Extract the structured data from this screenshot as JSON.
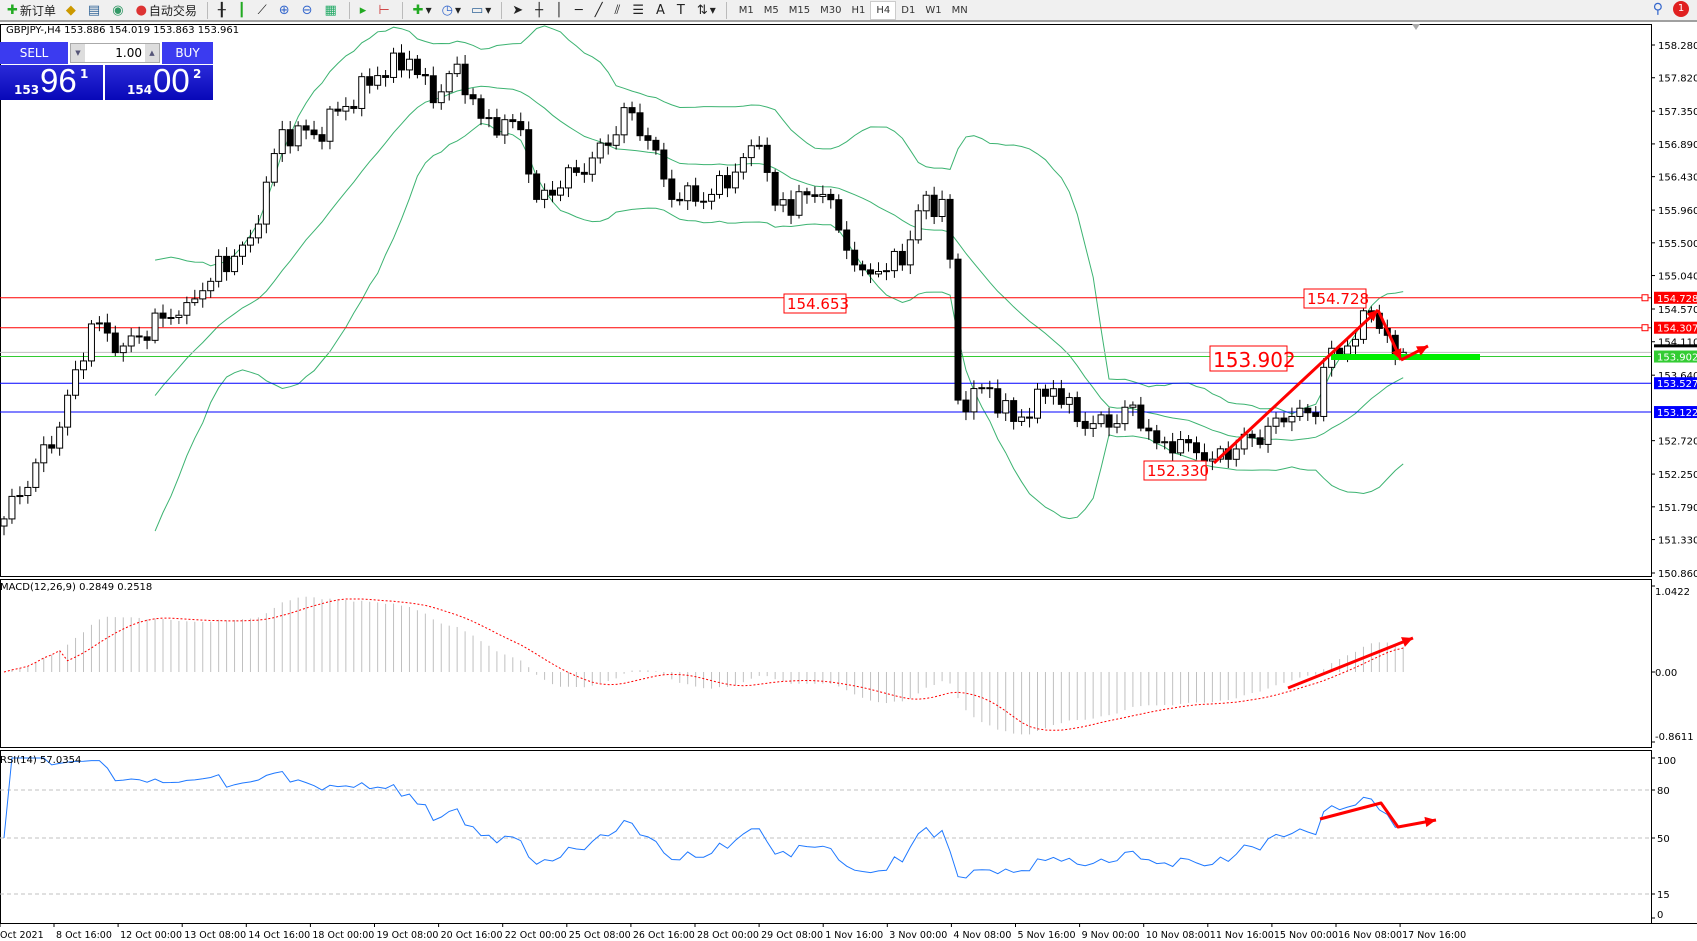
{
  "toolbar": {
    "new_order": "新订单",
    "auto_trading": "自动交易",
    "timeframes": [
      "M1",
      "M5",
      "M15",
      "M30",
      "H1",
      "H4",
      "D1",
      "W1",
      "MN"
    ],
    "selected_timeframe": "H4",
    "notifications": "1"
  },
  "chart": {
    "title": "GBPJPY-,H4  153.886 154.019 153.863 153.961",
    "symbol": "GBPJPY-",
    "period": "H4",
    "open": 153.886,
    "high": 154.019,
    "low": 153.863,
    "close": 153.961
  },
  "trade_panel": {
    "sell_label": "SELL",
    "buy_label": "BUY",
    "lot": "1.00",
    "bid": {
      "big": "153",
      "main": "96",
      "sup": "1"
    },
    "ask": {
      "big": "154",
      "main": "00",
      "sup": "2"
    }
  },
  "chart_data": {
    "type": "candlestick",
    "price_axis": {
      "ticks": [
        "158.280",
        "157.820",
        "157.350",
        "156.890",
        "156.430",
        "155.960",
        "155.500",
        "155.040",
        "154.570",
        "154.110",
        "153.640",
        "152.720",
        "152.250",
        "151.790",
        "151.330",
        "150.860"
      ],
      "range": [
        150.86,
        158.28
      ]
    },
    "time_axis": [
      "Oct 2021",
      "8 Oct 16:00",
      "12 Oct 00:00",
      "13 Oct 08:00",
      "14 Oct 16:00",
      "18 Oct 00:00",
      "19 Oct 08:00",
      "20 Oct 16:00",
      "22 Oct 00:00",
      "25 Oct 08:00",
      "26 Oct 16:00",
      "28 Oct 00:00",
      "29 Oct 08:00",
      "1 Nov 16:00",
      "3 Nov 00:00",
      "4 Nov 08:00",
      "5 Nov 16:00",
      "9 Nov 00:00",
      "10 Nov 08:00",
      "11 Nov 16:00",
      "15 Nov 00:00",
      "16 Nov 08:00",
      "17 Nov 16:00"
    ],
    "close_path_bar_price": [
      [
        0,
        151.62
      ],
      [
        7,
        152.91
      ],
      [
        11,
        154.36
      ],
      [
        15,
        154.05
      ],
      [
        23,
        154.66
      ],
      [
        31,
        155.57
      ],
      [
        35,
        157.09
      ],
      [
        39,
        157.02
      ],
      [
        47,
        157.85
      ],
      [
        51,
        158.08
      ],
      [
        54,
        157.47
      ],
      [
        57,
        158.01
      ],
      [
        60,
        157.25
      ],
      [
        65,
        157.09
      ],
      [
        67,
        156.11
      ],
      [
        72,
        156.49
      ],
      [
        76,
        156.87
      ],
      [
        78,
        157.4
      ],
      [
        81,
        156.94
      ],
      [
        84,
        156.11
      ],
      [
        89,
        156.18
      ],
      [
        95,
        156.87
      ],
      [
        97,
        156.03
      ],
      [
        103,
        156.18
      ],
      [
        107,
        155.19
      ],
      [
        108,
        155.12
      ],
      [
        113,
        155.19
      ],
      [
        115,
        155.95
      ],
      [
        118,
        156.11
      ],
      [
        119,
        155.27
      ],
      [
        120,
        153.29
      ],
      [
        124,
        153.45
      ],
      [
        127,
        152.99
      ],
      [
        132,
        153.45
      ],
      [
        135,
        152.99
      ],
      [
        139,
        152.91
      ],
      [
        142,
        153.22
      ],
      [
        145,
        152.69
      ],
      [
        149,
        152.69
      ],
      [
        152,
        152.46
      ],
      [
        157,
        152.76
      ],
      [
        162,
        153.06
      ],
      [
        165,
        153.06
      ],
      [
        166,
        153.75
      ],
      [
        169,
        154.05
      ],
      [
        172,
        154.51
      ],
      [
        174,
        154.2
      ],
      [
        175,
        153.9
      ],
      [
        176,
        153.961
      ]
    ],
    "bollinger": {
      "period": 20,
      "deviation": 2,
      "color": "#3cb371"
    },
    "hlines": [
      {
        "price": 154.728,
        "label": "154.728",
        "color": "#ff0000"
      },
      {
        "price": 154.307,
        "label": "154.307",
        "color": "#ff0000"
      },
      {
        "price": 153.902,
        "label": "153.902",
        "color": "#33cc33"
      },
      {
        "price": 153.527,
        "label": "153.527",
        "color": "#0000ff"
      },
      {
        "price": 153.122,
        "label": "153.122",
        "color": "#0000ff"
      }
    ],
    "bid_line": 153.961,
    "annotations": [
      "154.653",
      "154.728",
      "153.902",
      "152.330"
    ],
    "macd": {
      "label": "MACD(12,26,9) 0.2849 0.2518",
      "ticks": [
        "1.0422",
        "0.00",
        "-0.8611"
      ],
      "range": [
        -0.8611,
        1.0422
      ],
      "signal_color": "#ff0000",
      "hist_color": "#c0c0c0"
    },
    "rsi": {
      "label": "RSI(14) 57.0354",
      "ticks": [
        "100",
        "80",
        "50",
        "15",
        "0"
      ],
      "levels": [
        80,
        50,
        15
      ],
      "color": "#1e78ff"
    }
  }
}
